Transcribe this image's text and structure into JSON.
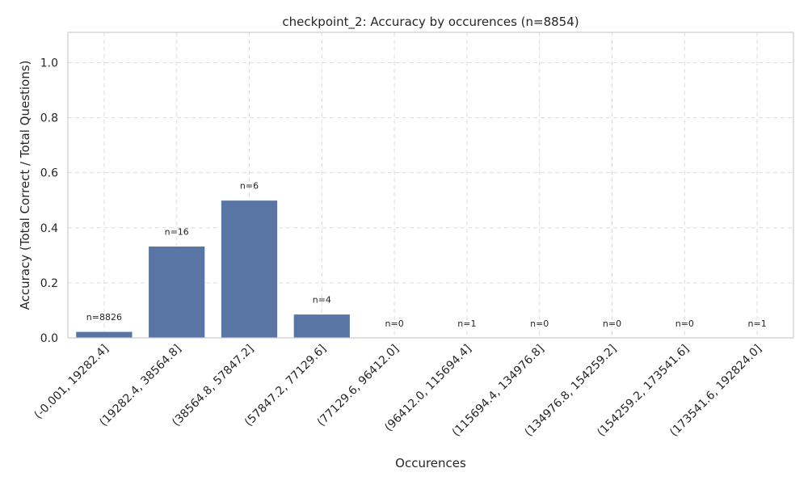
{
  "chart_data": {
    "type": "bar",
    "title": "checkpoint_2: Accuracy by occurences (n=8854)",
    "xlabel": "Occurences",
    "ylabel": "Accuracy (Total Correct / Total Questions)",
    "ylim": [
      0,
      1.11
    ],
    "yticks": [
      "0.0",
      "0.2",
      "0.4",
      "0.6",
      "0.8",
      "1.0"
    ],
    "grid": true,
    "bar_color": "#5875a4",
    "categories": [
      "(-0.001, 19282.4]",
      "(19282.4, 38564.8]",
      "(38564.8, 57847.2]",
      "(57847.2, 77129.6]",
      "(77129.6, 96412.0]",
      "(96412.0, 115694.4]",
      "(115694.4, 134976.8]",
      "(134976.8, 154259.2]",
      "(154259.2, 173541.6]",
      "(173541.6, 192824.0]"
    ],
    "values": [
      0.023,
      0.333,
      0.5,
      0.086,
      0.0,
      0.0,
      0.0,
      0.0,
      0.0,
      0.0
    ],
    "counts": [
      "n=8826",
      "n=16",
      "n=6",
      "n=4",
      "n=0",
      "n=1",
      "n=0",
      "n=0",
      "n=0",
      "n=1"
    ]
  }
}
